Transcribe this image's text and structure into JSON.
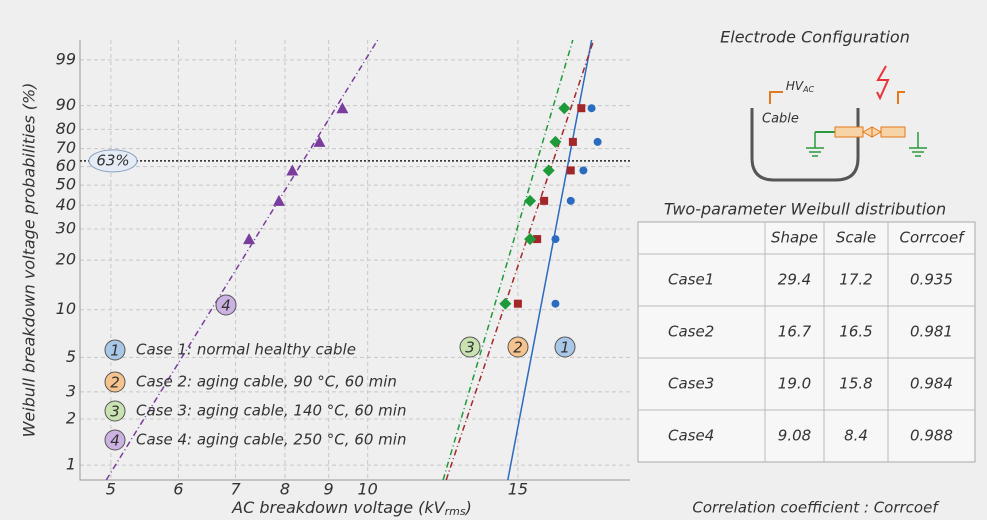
{
  "chart_data": {
    "type": "weibull",
    "x_label": {
      "text": "AC breakdown voltage (kV",
      "sub": "rms",
      "end": ")"
    },
    "y_label": "Weibull breakdown voltage probabilities (%)",
    "xscale": "log",
    "yscale": "weibull",
    "grid": true,
    "xlim": [
      4.6,
      20.3
    ],
    "xticks": [
      5,
      6,
      7,
      8,
      9,
      10,
      15
    ],
    "ylim": [
      0.8,
      99.8
    ],
    "yticks": [
      1,
      2,
      3,
      5,
      10,
      20,
      30,
      40,
      50,
      60,
      70,
      80,
      90,
      99
    ],
    "reference_line": {
      "y": 63.2,
      "label": "63%"
    },
    "series": [
      {
        "name": "Case 1: normal healthy cable",
        "badge": "1",
        "color": "#2a6cc0",
        "badge_color": "#a9c8e8",
        "marker": "circle",
        "x": [
          16.6,
          16.6,
          17.3,
          17.9,
          18.6,
          18.3
        ],
        "values": [
          10.9,
          26.4,
          42.1,
          57.9,
          73.6,
          89.1
        ]
      },
      {
        "name": "Case 2: aging cable, 90 °C, 60 min",
        "badge": "2",
        "color": "#a3262a",
        "badge_color": "#f6c38e",
        "marker": "square",
        "x": [
          15.0,
          15.8,
          16.1,
          17.3,
          17.4,
          17.8
        ],
        "values": [
          10.9,
          26.4,
          42.1,
          57.9,
          73.6,
          89.1
        ]
      },
      {
        "name": "Case 3: aging cable, 140 °C, 60 min",
        "badge": "3",
        "color": "#1e9a3a",
        "badge_color": "#c9e2b2",
        "marker": "diamond",
        "x": [
          14.5,
          15.5,
          15.5,
          16.3,
          16.6,
          17.0
        ],
        "values": [
          10.9,
          26.4,
          42.1,
          57.9,
          73.6,
          89.1
        ]
      },
      {
        "name": "Case 4: aging cable, 250 °C, 60 min",
        "badge": "4",
        "color": "#7a3d9e",
        "badge_color": "#cbb2e2",
        "marker": "triangle",
        "x": [
          6.76,
          7.26,
          7.87,
          8.16,
          8.78,
          9.34
        ],
        "values": [
          10.9,
          26.4,
          42.1,
          57.9,
          73.6,
          89.1
        ]
      }
    ]
  },
  "diagram": {
    "title": "Electrode Configuration",
    "hv": {
      "text": "HV",
      "sub": "AC"
    },
    "cable": "Cable"
  },
  "table": {
    "title": "Two-parameter Weibull distribution",
    "header": [
      "Shape",
      "Scale",
      "Corrcoef"
    ],
    "rows": [
      [
        "Case1",
        "29.4",
        "17.2",
        "0.935"
      ],
      [
        "Case2",
        "16.7",
        "16.5",
        "0.981"
      ],
      [
        "Case3",
        "19.0",
        "15.8",
        "0.984"
      ],
      [
        "Case4",
        "9.08",
        "8.4",
        "0.988"
      ]
    ],
    "note": "Correlation coefficient : Corrcoef"
  }
}
